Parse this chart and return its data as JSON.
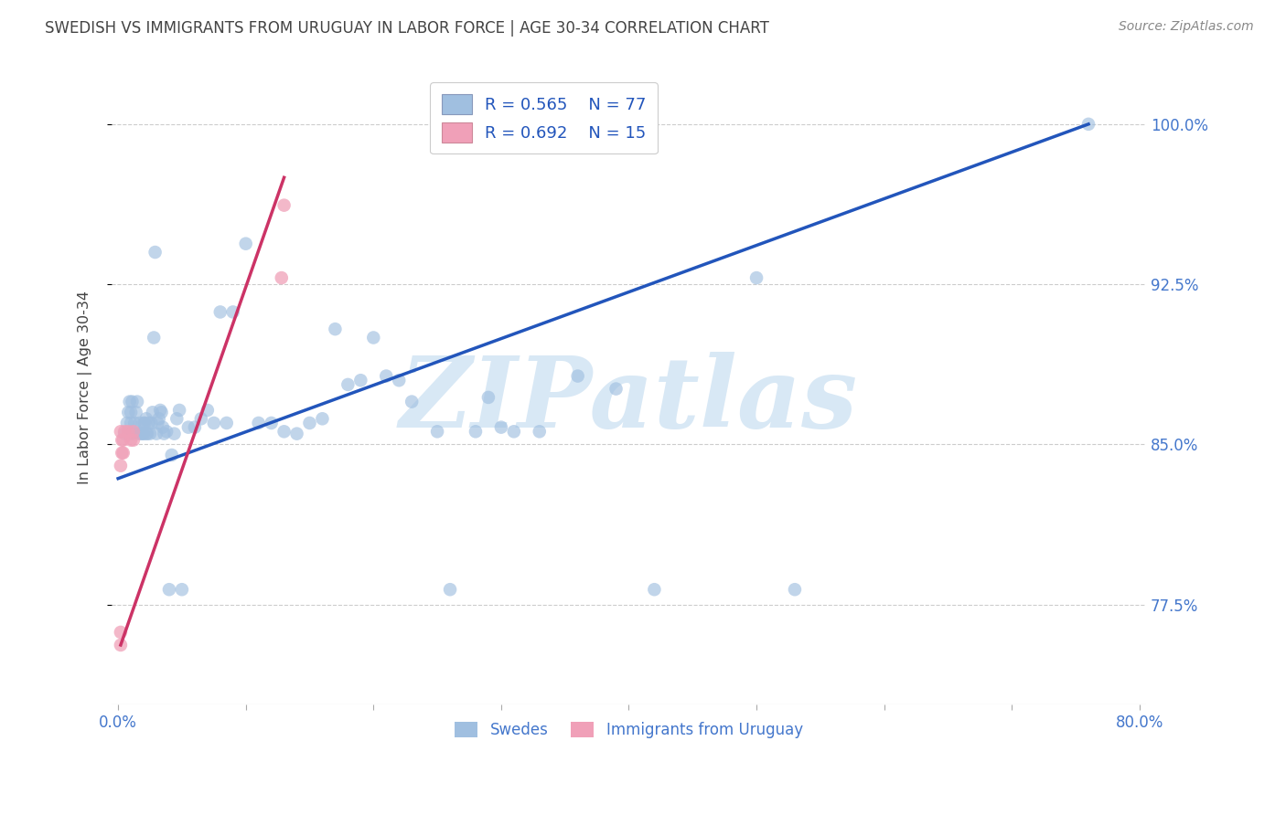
{
  "title": "SWEDISH VS IMMIGRANTS FROM URUGUAY IN LABOR FORCE | AGE 30-34 CORRELATION CHART",
  "source": "Source: ZipAtlas.com",
  "ylabel": "In Labor Force | Age 30-34",
  "legend_labels": [
    "Swedes",
    "Immigrants from Uruguay"
  ],
  "blue_R": 0.565,
  "blue_N": 77,
  "pink_R": 0.692,
  "pink_N": 15,
  "blue_color": "#a0bfe0",
  "pink_color": "#f0a0b8",
  "blue_line_color": "#2255bb",
  "pink_line_color": "#cc3366",
  "title_color": "#444444",
  "axis_label_color": "#4477cc",
  "right_ytick_color": "#4477cc",
  "watermark_color": "#d8e8f5",
  "watermark_fontsize": 78,
  "xlim_min": -0.005,
  "xlim_max": 0.805,
  "ylim_min": 0.728,
  "ylim_max": 1.025,
  "yticks": [
    0.775,
    0.85,
    0.925,
    1.0
  ],
  "ytick_labels": [
    "77.5%",
    "85.0%",
    "92.5%",
    "100.0%"
  ],
  "xticks": [
    0.0,
    0.1,
    0.2,
    0.3,
    0.4,
    0.5,
    0.6,
    0.7,
    0.8
  ],
  "xtick_labels": [
    "0.0%",
    "",
    "",
    "",
    "",
    "",
    "",
    "",
    "80.0%"
  ],
  "background_color": "#ffffff",
  "grid_color": "#cccccc",
  "marker_size": 110,
  "blue_line_x0": 0.0,
  "blue_line_y0": 0.834,
  "blue_line_x1": 0.76,
  "blue_line_y1": 1.0,
  "pink_line_x0": 0.002,
  "pink_line_y0": 0.756,
  "pink_line_x1": 0.13,
  "pink_line_y1": 0.975,
  "blue_x": [
    0.005,
    0.007,
    0.008,
    0.009,
    0.01,
    0.01,
    0.01,
    0.011,
    0.012,
    0.013,
    0.014,
    0.015,
    0.016,
    0.017,
    0.018,
    0.019,
    0.02,
    0.02,
    0.021,
    0.022,
    0.022,
    0.023,
    0.024,
    0.025,
    0.026,
    0.027,
    0.028,
    0.029,
    0.03,
    0.031,
    0.032,
    0.033,
    0.034,
    0.035,
    0.036,
    0.038,
    0.04,
    0.042,
    0.044,
    0.046,
    0.048,
    0.05,
    0.055,
    0.06,
    0.065,
    0.07,
    0.075,
    0.08,
    0.085,
    0.09,
    0.1,
    0.11,
    0.12,
    0.13,
    0.14,
    0.15,
    0.16,
    0.17,
    0.18,
    0.19,
    0.2,
    0.21,
    0.22,
    0.23,
    0.25,
    0.26,
    0.28,
    0.29,
    0.3,
    0.31,
    0.33,
    0.36,
    0.39,
    0.42,
    0.5,
    0.53,
    0.76
  ],
  "blue_y": [
    0.855,
    0.86,
    0.865,
    0.87,
    0.855,
    0.86,
    0.865,
    0.87,
    0.855,
    0.86,
    0.865,
    0.87,
    0.855,
    0.86,
    0.855,
    0.855,
    0.855,
    0.86,
    0.86,
    0.855,
    0.862,
    0.855,
    0.86,
    0.855,
    0.86,
    0.865,
    0.9,
    0.94,
    0.855,
    0.86,
    0.862,
    0.866,
    0.865,
    0.858,
    0.855,
    0.856,
    0.782,
    0.845,
    0.855,
    0.862,
    0.866,
    0.782,
    0.858,
    0.858,
    0.862,
    0.866,
    0.86,
    0.912,
    0.86,
    0.912,
    0.944,
    0.86,
    0.86,
    0.856,
    0.855,
    0.86,
    0.862,
    0.904,
    0.878,
    0.88,
    0.9,
    0.882,
    0.88,
    0.87,
    0.856,
    0.782,
    0.856,
    0.872,
    0.858,
    0.856,
    0.856,
    0.882,
    0.876,
    0.782,
    0.928,
    0.782,
    1.0
  ],
  "pink_x": [
    0.002,
    0.002,
    0.002,
    0.002,
    0.003,
    0.003,
    0.004,
    0.004,
    0.005,
    0.008,
    0.01,
    0.012,
    0.012,
    0.128,
    0.13
  ],
  "pink_y": [
    0.756,
    0.762,
    0.84,
    0.856,
    0.846,
    0.852,
    0.846,
    0.852,
    0.856,
    0.856,
    0.852,
    0.852,
    0.856,
    0.928,
    0.962
  ]
}
